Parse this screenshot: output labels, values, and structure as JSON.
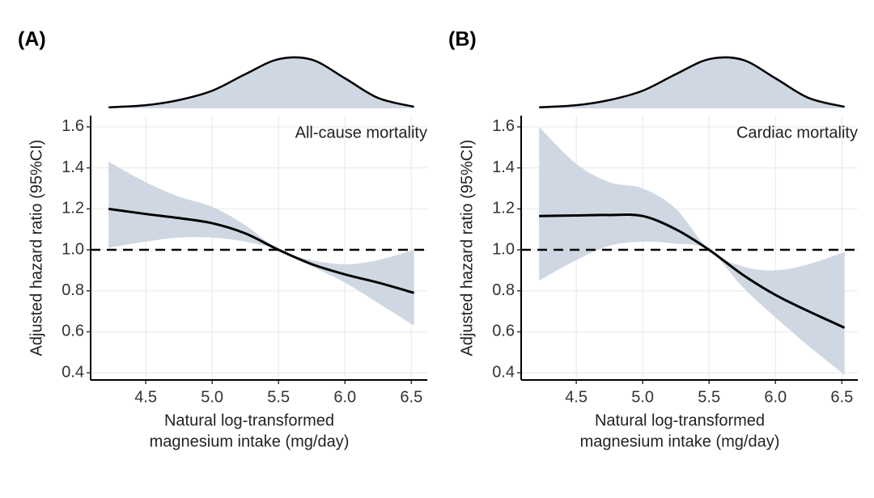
{
  "chart_data": [
    {
      "type": "line",
      "panel_label": "(A)",
      "annotation": "All-cause mortality",
      "xlabel": [
        "Natural log-transformed",
        "magnesium intake (mg/day)"
      ],
      "ylabel": "Adjusted hazard ratio (95%CI)",
      "x": [
        4.22,
        4.5,
        4.75,
        5.0,
        5.25,
        5.5,
        5.75,
        6.0,
        6.25,
        6.52
      ],
      "hr": [
        1.2,
        1.175,
        1.155,
        1.13,
        1.08,
        1.0,
        0.93,
        0.88,
        0.84,
        0.79
      ],
      "lower": [
        1.01,
        1.04,
        1.06,
        1.06,
        1.04,
        1.0,
        0.92,
        0.84,
        0.74,
        0.63
      ],
      "upper": [
        1.43,
        1.33,
        1.26,
        1.21,
        1.12,
        1.0,
        0.95,
        0.93,
        0.95,
        1.0
      ],
      "density": [
        0.02,
        0.06,
        0.16,
        0.34,
        0.66,
        0.95,
        0.94,
        0.58,
        0.2,
        0.03
      ],
      "density_ylim": [
        0,
        1
      ],
      "reference_line": 1,
      "xlim": [
        4.085,
        6.62
      ],
      "ylim": [
        0.365,
        1.655
      ],
      "xticks": [
        4.5,
        {
          "value": 5,
          "label": "5.0"
        },
        5.5,
        {
          "value": 6,
          "label": "6.0"
        },
        6.5
      ],
      "yticks": [
        0.4,
        0.6,
        0.8,
        {
          "value": 1,
          "label": "1.0"
        },
        1.2,
        1.4,
        1.6
      ],
      "line_color": "#000000",
      "band_color": "#cfd8e2",
      "grid": true
    },
    {
      "type": "line",
      "panel_label": "(B)",
      "annotation": "Cardiac mortality",
      "xlabel": [
        "Natural log-transformed",
        "magnesium intake (mg/day)"
      ],
      "ylabel": "Adjusted hazard ratio (95%CI)",
      "x": [
        4.22,
        4.5,
        4.75,
        5.0,
        5.25,
        5.5,
        5.75,
        6.0,
        6.25,
        6.52
      ],
      "hr": [
        1.165,
        1.168,
        1.17,
        1.165,
        1.1,
        1.0,
        0.88,
        0.78,
        0.7,
        0.62
      ],
      "lower": [
        0.85,
        0.95,
        1.02,
        1.04,
        1.03,
        1.0,
        0.82,
        0.67,
        0.53,
        0.39
      ],
      "upper": [
        1.6,
        1.42,
        1.33,
        1.3,
        1.2,
        1.0,
        0.92,
        0.9,
        0.93,
        0.99
      ],
      "density": [
        0.02,
        0.06,
        0.16,
        0.34,
        0.66,
        0.95,
        0.94,
        0.58,
        0.2,
        0.03
      ],
      "density_ylim": [
        0,
        1
      ],
      "reference_line": 1,
      "xlim": [
        4.085,
        6.62
      ],
      "ylim": [
        0.365,
        1.655
      ],
      "xticks": [
        4.5,
        {
          "value": 5,
          "label": "5.0"
        },
        5.5,
        {
          "value": 6,
          "label": "6.0"
        },
        6.5
      ],
      "yticks": [
        0.4,
        0.6,
        0.8,
        {
          "value": 1,
          "label": "1.0"
        },
        1.2,
        1.4,
        1.6
      ],
      "line_color": "#000000",
      "band_color": "#cfd8e2",
      "grid": true
    }
  ]
}
